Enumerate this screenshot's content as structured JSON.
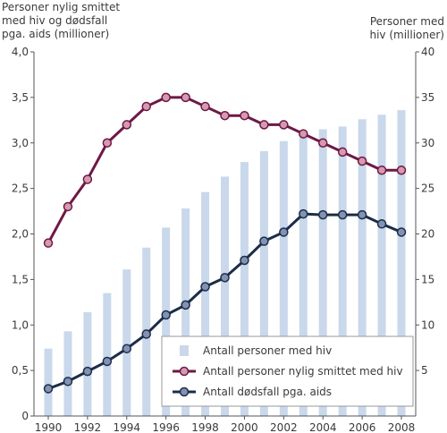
{
  "chart_data": {
    "type": "bar+line",
    "title": "",
    "y_left_label_lines": [
      "Personer nylig smittet",
      "med hiv og dødsfall",
      "pga. aids (millioner)"
    ],
    "y_right_label_lines": [
      "Personer med",
      "hiv (millioner)"
    ],
    "y_left_ticks": [
      "0",
      "0,5",
      "1,0",
      "1,5",
      "2,0",
      "2,5",
      "3,0",
      "3,5",
      "4,0"
    ],
    "y_left_tick_values": [
      0,
      0.5,
      1.0,
      1.5,
      2.0,
      2.5,
      3.0,
      3.5,
      4.0
    ],
    "y_right_ticks": [
      "5",
      "10",
      "15",
      "20",
      "25",
      "30",
      "35",
      "40"
    ],
    "y_right_tick_values": [
      5,
      10,
      15,
      20,
      25,
      30,
      35,
      40
    ],
    "y_left_lim": [
      0,
      4
    ],
    "y_right_lim": [
      0,
      40
    ],
    "x_ticks": [
      "1990",
      "1992",
      "1994",
      "1996",
      "1998",
      "2000",
      "2002",
      "2004",
      "2006",
      "2008"
    ],
    "x_tick_values": [
      1990,
      1992,
      1994,
      1996,
      1998,
      2000,
      2002,
      2004,
      2006,
      2008
    ],
    "x_lim": [
      1990,
      2008
    ],
    "years": [
      1990,
      1991,
      1992,
      1993,
      1994,
      1995,
      1996,
      1997,
      1998,
      1999,
      2000,
      2001,
      2002,
      2003,
      2004,
      2005,
      2006,
      2007,
      2008
    ],
    "legend_placement": "bottom-right",
    "grid": false,
    "series": [
      {
        "name": "Antall personer med hiv",
        "kind": "bar",
        "axis": "right",
        "color": "#c9d8ea",
        "values": [
          7.4,
          9.3,
          11.4,
          13.5,
          16.1,
          18.5,
          20.7,
          22.8,
          24.6,
          26.3,
          27.9,
          29.1,
          30.2,
          30.8,
          31.5,
          31.8,
          32.6,
          33.1,
          33.6
        ]
      },
      {
        "name": "Antall personer nylig smittet med hiv",
        "kind": "line",
        "axis": "left",
        "color": "#6e1846",
        "marker_color": "#d69aae",
        "values": [
          1.9,
          2.3,
          2.6,
          3.0,
          3.2,
          3.4,
          3.5,
          3.5,
          3.4,
          3.3,
          3.3,
          3.2,
          3.2,
          3.1,
          3.0,
          2.9,
          2.8,
          2.7,
          2.7
        ]
      },
      {
        "name": "Antall dødsfall pga. aids",
        "kind": "line",
        "axis": "left",
        "color": "#1c2d49",
        "marker_color": "#8392b3",
        "values": [
          0.3,
          0.38,
          0.49,
          0.6,
          0.74,
          0.9,
          1.11,
          1.22,
          1.42,
          1.52,
          1.71,
          1.92,
          2.02,
          2.22,
          2.21,
          2.21,
          2.21,
          2.11,
          2.02
        ]
      }
    ]
  }
}
